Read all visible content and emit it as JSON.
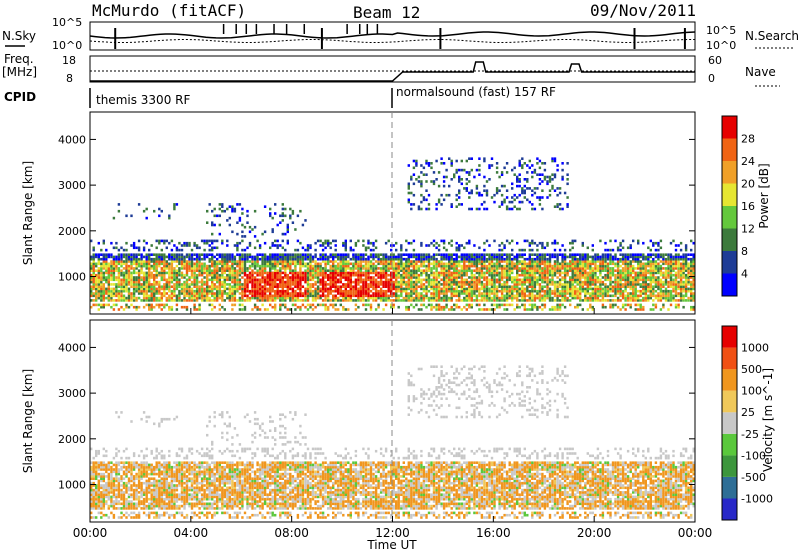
{
  "header": {
    "title": "McMurdo (fitACF)",
    "beam": "Beam 12",
    "date": "09/Nov/2011"
  },
  "noise_panel": {
    "left_label": "N.Sky",
    "right_label": "N.Search",
    "left_ticks": [
      "10^5",
      "10^0"
    ],
    "right_ticks": [
      "10^5",
      "10^0"
    ]
  },
  "freq_panel": {
    "left_label_1": "Freq.",
    "left_label_2": "[MHz]",
    "left_ticks": [
      "18",
      "8"
    ],
    "right_label": "Nave",
    "right_ticks": [
      "60",
      "0"
    ]
  },
  "cpid": {
    "label": "CPID",
    "segments": [
      {
        "text": "themis 3300 RF",
        "start_hour": 0,
        "end_hour": 12
      },
      {
        "text": "normalsound (fast) 157 RF",
        "start_hour": 12,
        "end_hour": 24
      }
    ]
  },
  "power_panel": {
    "ylabel": "Slant Range [km]",
    "yticks": [
      "1000",
      "2000",
      "3000",
      "4000"
    ],
    "colorbar_label": "Power [dB]",
    "colorbar_ticks": [
      "28",
      "24",
      "20",
      "16",
      "12",
      "8",
      "4"
    ],
    "colors": [
      "#0000ff",
      "#1e3c96",
      "#3c7a3c",
      "#64c83c",
      "#e6e632",
      "#f0a028",
      "#f06414",
      "#e60000"
    ]
  },
  "velocity_panel": {
    "ylabel": "Slant Range [km]",
    "yticks": [
      "1000",
      "2000",
      "3000",
      "4000"
    ],
    "colorbar_label": "Velocity [m s^-1]",
    "colorbar_ticks": [
      "1000",
      "500",
      "100",
      "25",
      "-25",
      "-100",
      "-500",
      "-1000"
    ],
    "colors": [
      "#2828c8",
      "#2e6e96",
      "#3c963c",
      "#5ac83c",
      "#c8c8c8",
      "#f0c85a",
      "#f0961e",
      "#f05014",
      "#e60000"
    ]
  },
  "xaxis": {
    "label": "Time UT",
    "ticks": [
      "00:00",
      "04:00",
      "08:00",
      "12:00",
      "16:00",
      "20:00",
      "00:00"
    ]
  },
  "chart_data": {
    "type": "heatmap",
    "title": "McMurdo (fitACF)",
    "x_range_hours": [
      0,
      24
    ],
    "y_range_km": [
      180,
      4600
    ],
    "xlabel": "Time UT",
    "ylabel": "Slant Range [km]",
    "power_scale_db": [
      0,
      30
    ],
    "velocity_scale_ms": [
      -1000,
      1000
    ],
    "scatter_regions": [
      {
        "t0": 0.0,
        "t1": 12.0,
        "r0": 300,
        "r1": 1500,
        "description": "band"
      },
      {
        "t0": 12.0,
        "t1": 24.0,
        "r0": 300,
        "r1": 1500,
        "description": "band"
      },
      {
        "t0": 12.5,
        "t1": 19.0,
        "r0": 2500,
        "r1": 3600,
        "description": "band"
      }
    ]
  }
}
